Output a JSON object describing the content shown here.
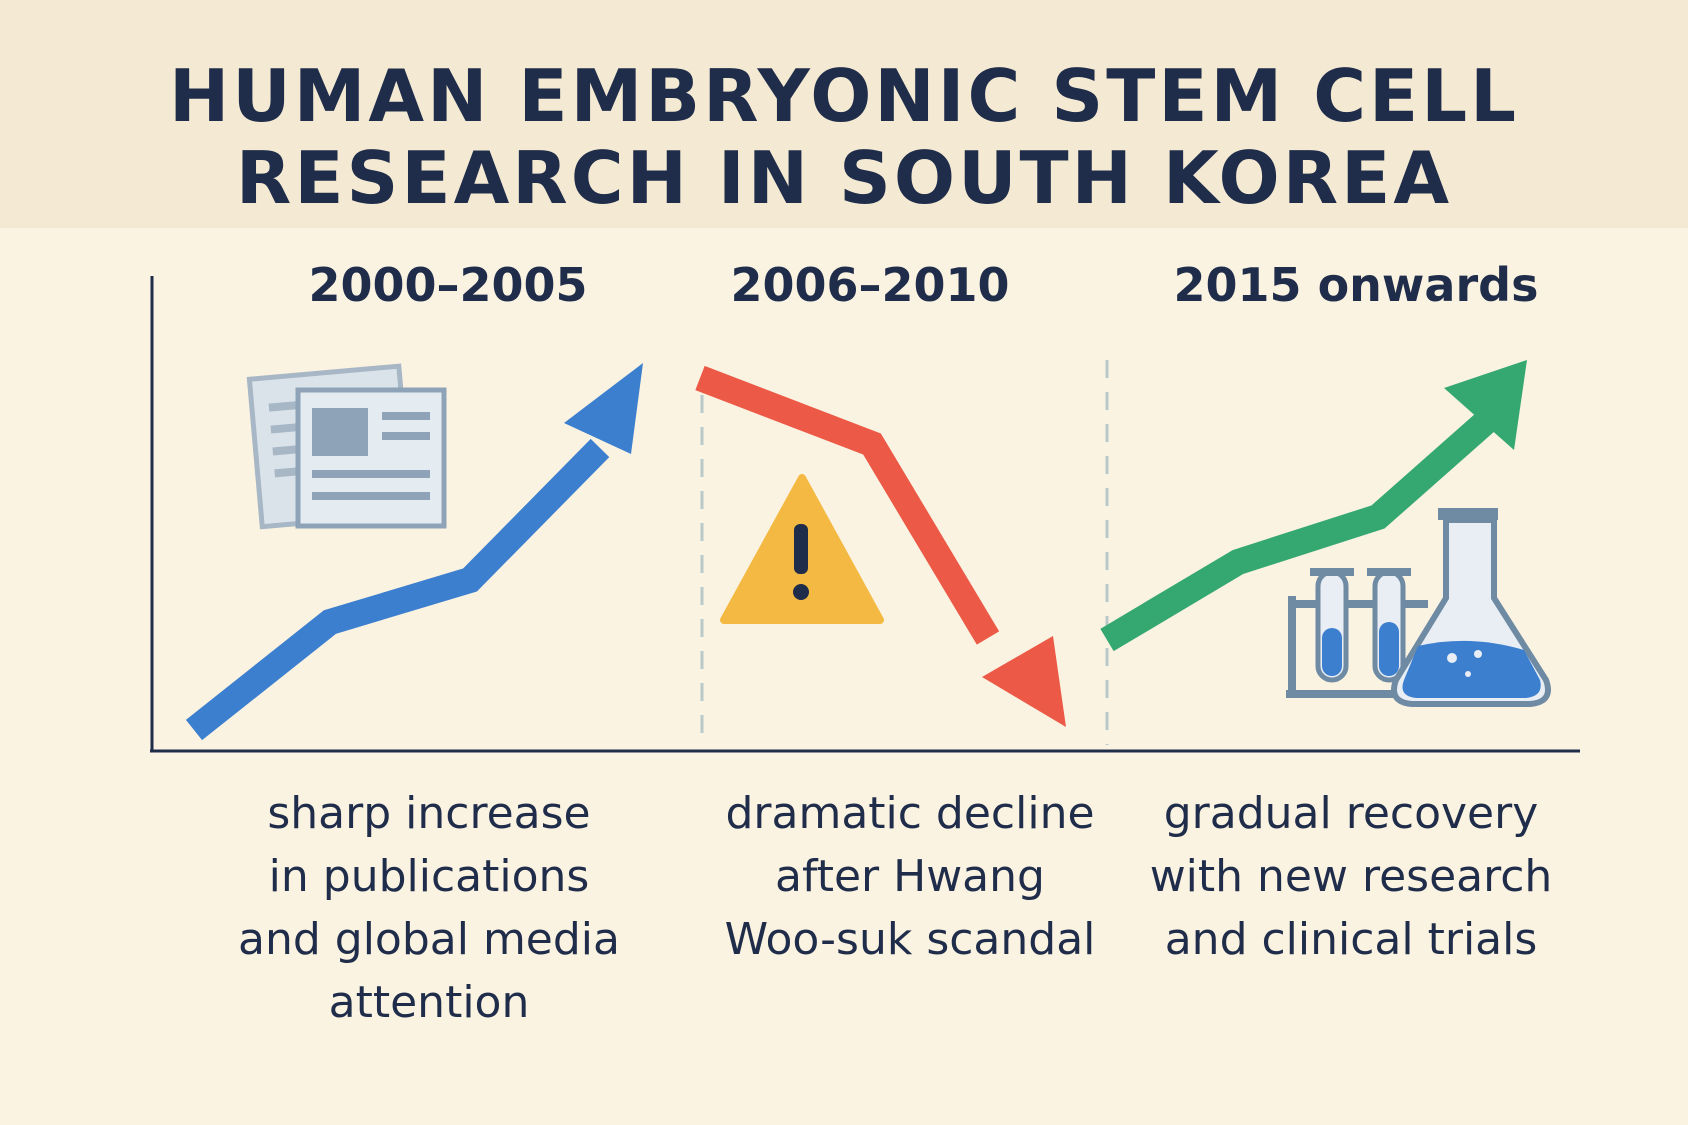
{
  "title": {
    "line1": "HUMAN EMBRYONIC STEM CELL",
    "line2": "RESEARCH IN SOUTH KOREA"
  },
  "periods": [
    {
      "label": "2000–2005",
      "trend": "increase",
      "icon": "newspaper-icon",
      "color": "#3d7fcf",
      "description": [
        "sharp increase",
        "in publications",
        "and global media",
        "attention"
      ]
    },
    {
      "label": "2006–2010",
      "trend": "decline",
      "icon": "warning-icon",
      "color": "#ec5a47",
      "description": [
        "dramatic decline",
        "after Hwang",
        "Woo-suk scandal"
      ]
    },
    {
      "label": "2015 onwards",
      "trend": "recovery",
      "icon": "lab-glassware-icon",
      "color": "#35a872",
      "description": [
        "gradual recovery",
        "with new research",
        "and clinical trials"
      ]
    }
  ],
  "colors": {
    "background": "#fbf3e2",
    "header_band": "#f4ead3",
    "text": "#1f2d4a",
    "warning": "#f4b942"
  }
}
